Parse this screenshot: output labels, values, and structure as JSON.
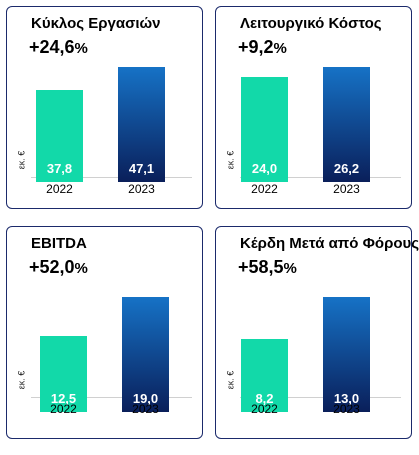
{
  "colors": {
    "bar_2022": "#12d9a9",
    "bar_2023_top": "#1672c6",
    "bar_2023_bottom": "#0a1f5a",
    "border": "#1b2a6b"
  },
  "chart_data": [
    {
      "type": "bar",
      "title": "Κύκλος Εργασιών",
      "growth": "+24,6",
      "growth_suffix": "%",
      "ylabel": "εκ. €",
      "categories": [
        "2022",
        "2023"
      ],
      "values": [
        37.8,
        47.1
      ],
      "value_labels": [
        "37,8",
        "47,1"
      ]
    },
    {
      "type": "bar",
      "title": "Λειτουργικό Κόστος",
      "growth": "+9,2",
      "growth_suffix": "%",
      "ylabel": "εκ. €",
      "categories": [
        "2022",
        "2023"
      ],
      "values": [
        24.0,
        26.2
      ],
      "value_labels": [
        "24,0",
        "26,2"
      ]
    },
    {
      "type": "bar",
      "title": "EBITDA",
      "growth": "+52,0",
      "growth_suffix": "%",
      "ylabel": "εκ. €",
      "categories": [
        "2022",
        "2023"
      ],
      "values": [
        12.5,
        19.0
      ],
      "value_labels": [
        "12,5",
        "19,0"
      ]
    },
    {
      "type": "bar",
      "title": "Κέρδη Μετά από Φόρους",
      "growth": "+58,5",
      "growth_suffix": "%",
      "ylabel": "εκ. €",
      "categories": [
        "2022",
        "2023"
      ],
      "values": [
        8.2,
        13.0
      ],
      "value_labels": [
        "8,2",
        "13,0"
      ]
    }
  ]
}
